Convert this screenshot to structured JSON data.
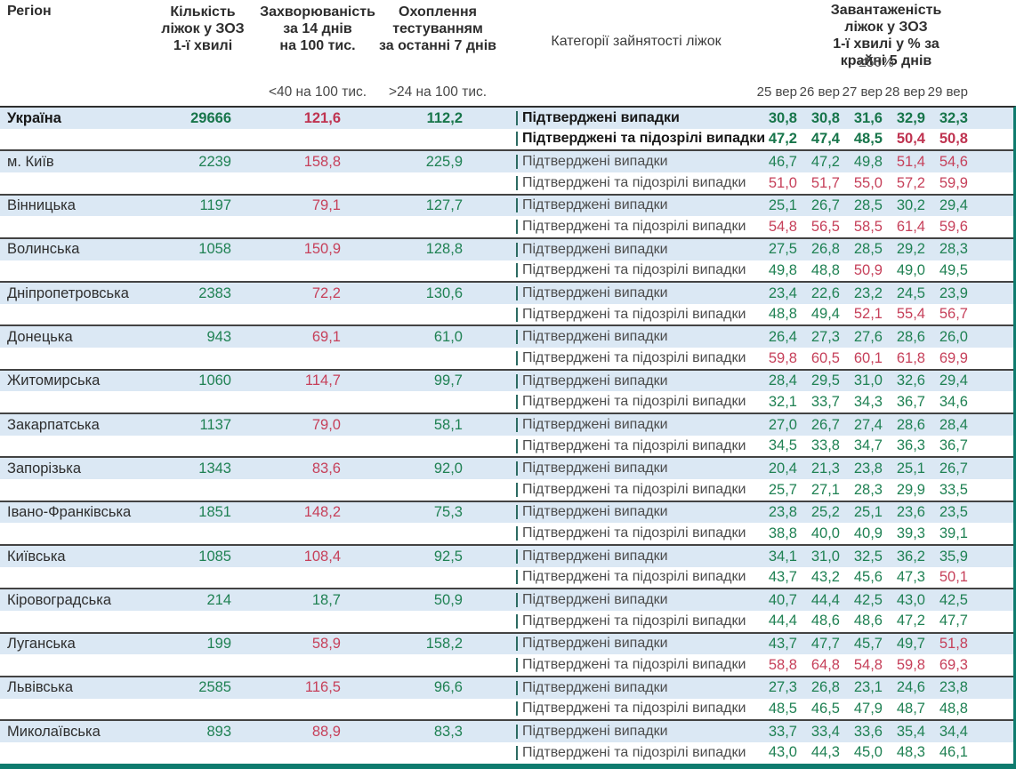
{
  "chart_data": {
    "type": "table",
    "columns": {
      "region": "Регіон",
      "beds": "Кількість\nліжок у ЗОЗ\n1-ї хвилі",
      "incidence": "Захворюваність\nза 14 днів\nна 100 тис.",
      "testing": "Охоплення\nтестуванням\nза останні 7 днів",
      "category": "Категорії зайнятості ліжок",
      "load": "Завантаженість ліжок у ЗОЗ\n1-ї хвилі у % за крайні 5 днів",
      "load_threshold": "≤50%",
      "incidence_threshold": "<40 на 100 тис.",
      "testing_threshold": ">24 на 100 тис.",
      "dates": [
        "25 вер",
        "26 вер",
        "27 вер",
        "28 вер",
        "29 вер"
      ]
    },
    "category_labels": {
      "confirmed": "Підтверджені випадки",
      "confirmed_suspected": "Підтверджені та підозрілі випадки"
    },
    "rules": {
      "occupancy_red_above": 50,
      "incidence_green_below": 40,
      "testing_green_above": 24
    },
    "colors": {
      "green": "#1f8153",
      "red": "#c6405a",
      "row_blue": "#dbe8f4",
      "teal": "#0e7b6e"
    },
    "rows": [
      {
        "region": "Україна",
        "bold": true,
        "beds": "29666",
        "incidence": "121,6",
        "testing": "112,2",
        "confirmed": [
          "30,8",
          "30,8",
          "31,6",
          "32,9",
          "32,3"
        ],
        "confirmed_suspected": [
          "47,2",
          "47,4",
          "48,5",
          "50,4",
          "50,8"
        ]
      },
      {
        "region": "м. Київ",
        "bold": false,
        "beds": "2239",
        "incidence": "158,8",
        "testing": "225,9",
        "confirmed": [
          "46,7",
          "47,2",
          "49,8",
          "51,4",
          "54,6"
        ],
        "confirmed_suspected": [
          "51,0",
          "51,7",
          "55,0",
          "57,2",
          "59,9"
        ]
      },
      {
        "region": "Вінницька",
        "bold": false,
        "beds": "1197",
        "incidence": "79,1",
        "testing": "127,7",
        "confirmed": [
          "25,1",
          "26,7",
          "28,5",
          "30,2",
          "29,4"
        ],
        "confirmed_suspected": [
          "54,8",
          "56,5",
          "58,5",
          "61,4",
          "59,6"
        ]
      },
      {
        "region": "Волинська",
        "bold": false,
        "beds": "1058",
        "incidence": "150,9",
        "testing": "128,8",
        "confirmed": [
          "27,5",
          "26,8",
          "28,5",
          "29,2",
          "28,3"
        ],
        "confirmed_suspected": [
          "49,8",
          "48,8",
          "50,9",
          "49,0",
          "49,5"
        ]
      },
      {
        "region": "Дніпропетровська",
        "bold": false,
        "beds": "2383",
        "incidence": "72,2",
        "testing": "130,6",
        "confirmed": [
          "23,4",
          "22,6",
          "23,2",
          "24,5",
          "23,9"
        ],
        "confirmed_suspected": [
          "48,8",
          "49,4",
          "52,1",
          "55,4",
          "56,7"
        ]
      },
      {
        "region": "Донецька",
        "bold": false,
        "beds": "943",
        "incidence": "69,1",
        "testing": "61,0",
        "confirmed": [
          "26,4",
          "27,3",
          "27,6",
          "28,6",
          "26,0"
        ],
        "confirmed_suspected": [
          "59,8",
          "60,5",
          "60,1",
          "61,8",
          "69,9"
        ]
      },
      {
        "region": "Житомирська",
        "bold": false,
        "beds": "1060",
        "incidence": "114,7",
        "testing": "99,7",
        "confirmed": [
          "28,4",
          "29,5",
          "31,0",
          "32,6",
          "29,4"
        ],
        "confirmed_suspected": [
          "32,1",
          "33,7",
          "34,3",
          "36,7",
          "34,6"
        ]
      },
      {
        "region": "Закарпатська",
        "bold": false,
        "beds": "1137",
        "incidence": "79,0",
        "testing": "58,1",
        "confirmed": [
          "27,0",
          "26,7",
          "27,4",
          "28,6",
          "28,4"
        ],
        "confirmed_suspected": [
          "34,5",
          "33,8",
          "34,7",
          "36,3",
          "36,7"
        ]
      },
      {
        "region": "Запорізька",
        "bold": false,
        "beds": "1343",
        "incidence": "83,6",
        "testing": "92,0",
        "confirmed": [
          "20,4",
          "21,3",
          "23,8",
          "25,1",
          "26,7"
        ],
        "confirmed_suspected": [
          "25,7",
          "27,1",
          "28,3",
          "29,9",
          "33,5"
        ]
      },
      {
        "region": "Івано-Франківська",
        "bold": false,
        "beds": "1851",
        "incidence": "148,2",
        "testing": "75,3",
        "confirmed": [
          "23,8",
          "25,2",
          "25,1",
          "23,6",
          "23,5"
        ],
        "confirmed_suspected": [
          "38,8",
          "40,0",
          "40,9",
          "39,3",
          "39,1"
        ]
      },
      {
        "region": "Київська",
        "bold": false,
        "beds": "1085",
        "incidence": "108,4",
        "testing": "92,5",
        "confirmed": [
          "34,1",
          "31,0",
          "32,5",
          "36,2",
          "35,9"
        ],
        "confirmed_suspected": [
          "43,7",
          "43,2",
          "45,6",
          "47,3",
          "50,1"
        ]
      },
      {
        "region": "Кіровоградська",
        "bold": false,
        "beds": "214",
        "incidence": "18,7",
        "testing": "50,9",
        "confirmed": [
          "40,7",
          "44,4",
          "42,5",
          "43,0",
          "42,5"
        ],
        "confirmed_suspected": [
          "44,4",
          "48,6",
          "48,6",
          "47,2",
          "47,7"
        ]
      },
      {
        "region": "Луганська",
        "bold": false,
        "beds": "199",
        "incidence": "58,9",
        "testing": "158,2",
        "confirmed": [
          "43,7",
          "47,7",
          "45,7",
          "49,7",
          "51,8"
        ],
        "confirmed_suspected": [
          "58,8",
          "64,8",
          "54,8",
          "59,8",
          "69,3"
        ]
      },
      {
        "region": "Львівська",
        "bold": false,
        "beds": "2585",
        "incidence": "116,5",
        "testing": "96,6",
        "confirmed": [
          "27,3",
          "26,8",
          "23,1",
          "24,6",
          "23,8"
        ],
        "confirmed_suspected": [
          "48,5",
          "46,5",
          "47,9",
          "48,7",
          "48,8"
        ]
      },
      {
        "region": "Миколаївська",
        "bold": false,
        "beds": "893",
        "incidence": "88,9",
        "testing": "83,3",
        "confirmed": [
          "33,7",
          "33,4",
          "33,6",
          "35,4",
          "34,4"
        ],
        "confirmed_suspected": [
          "43,0",
          "44,3",
          "45,0",
          "48,3",
          "46,1"
        ]
      }
    ]
  }
}
